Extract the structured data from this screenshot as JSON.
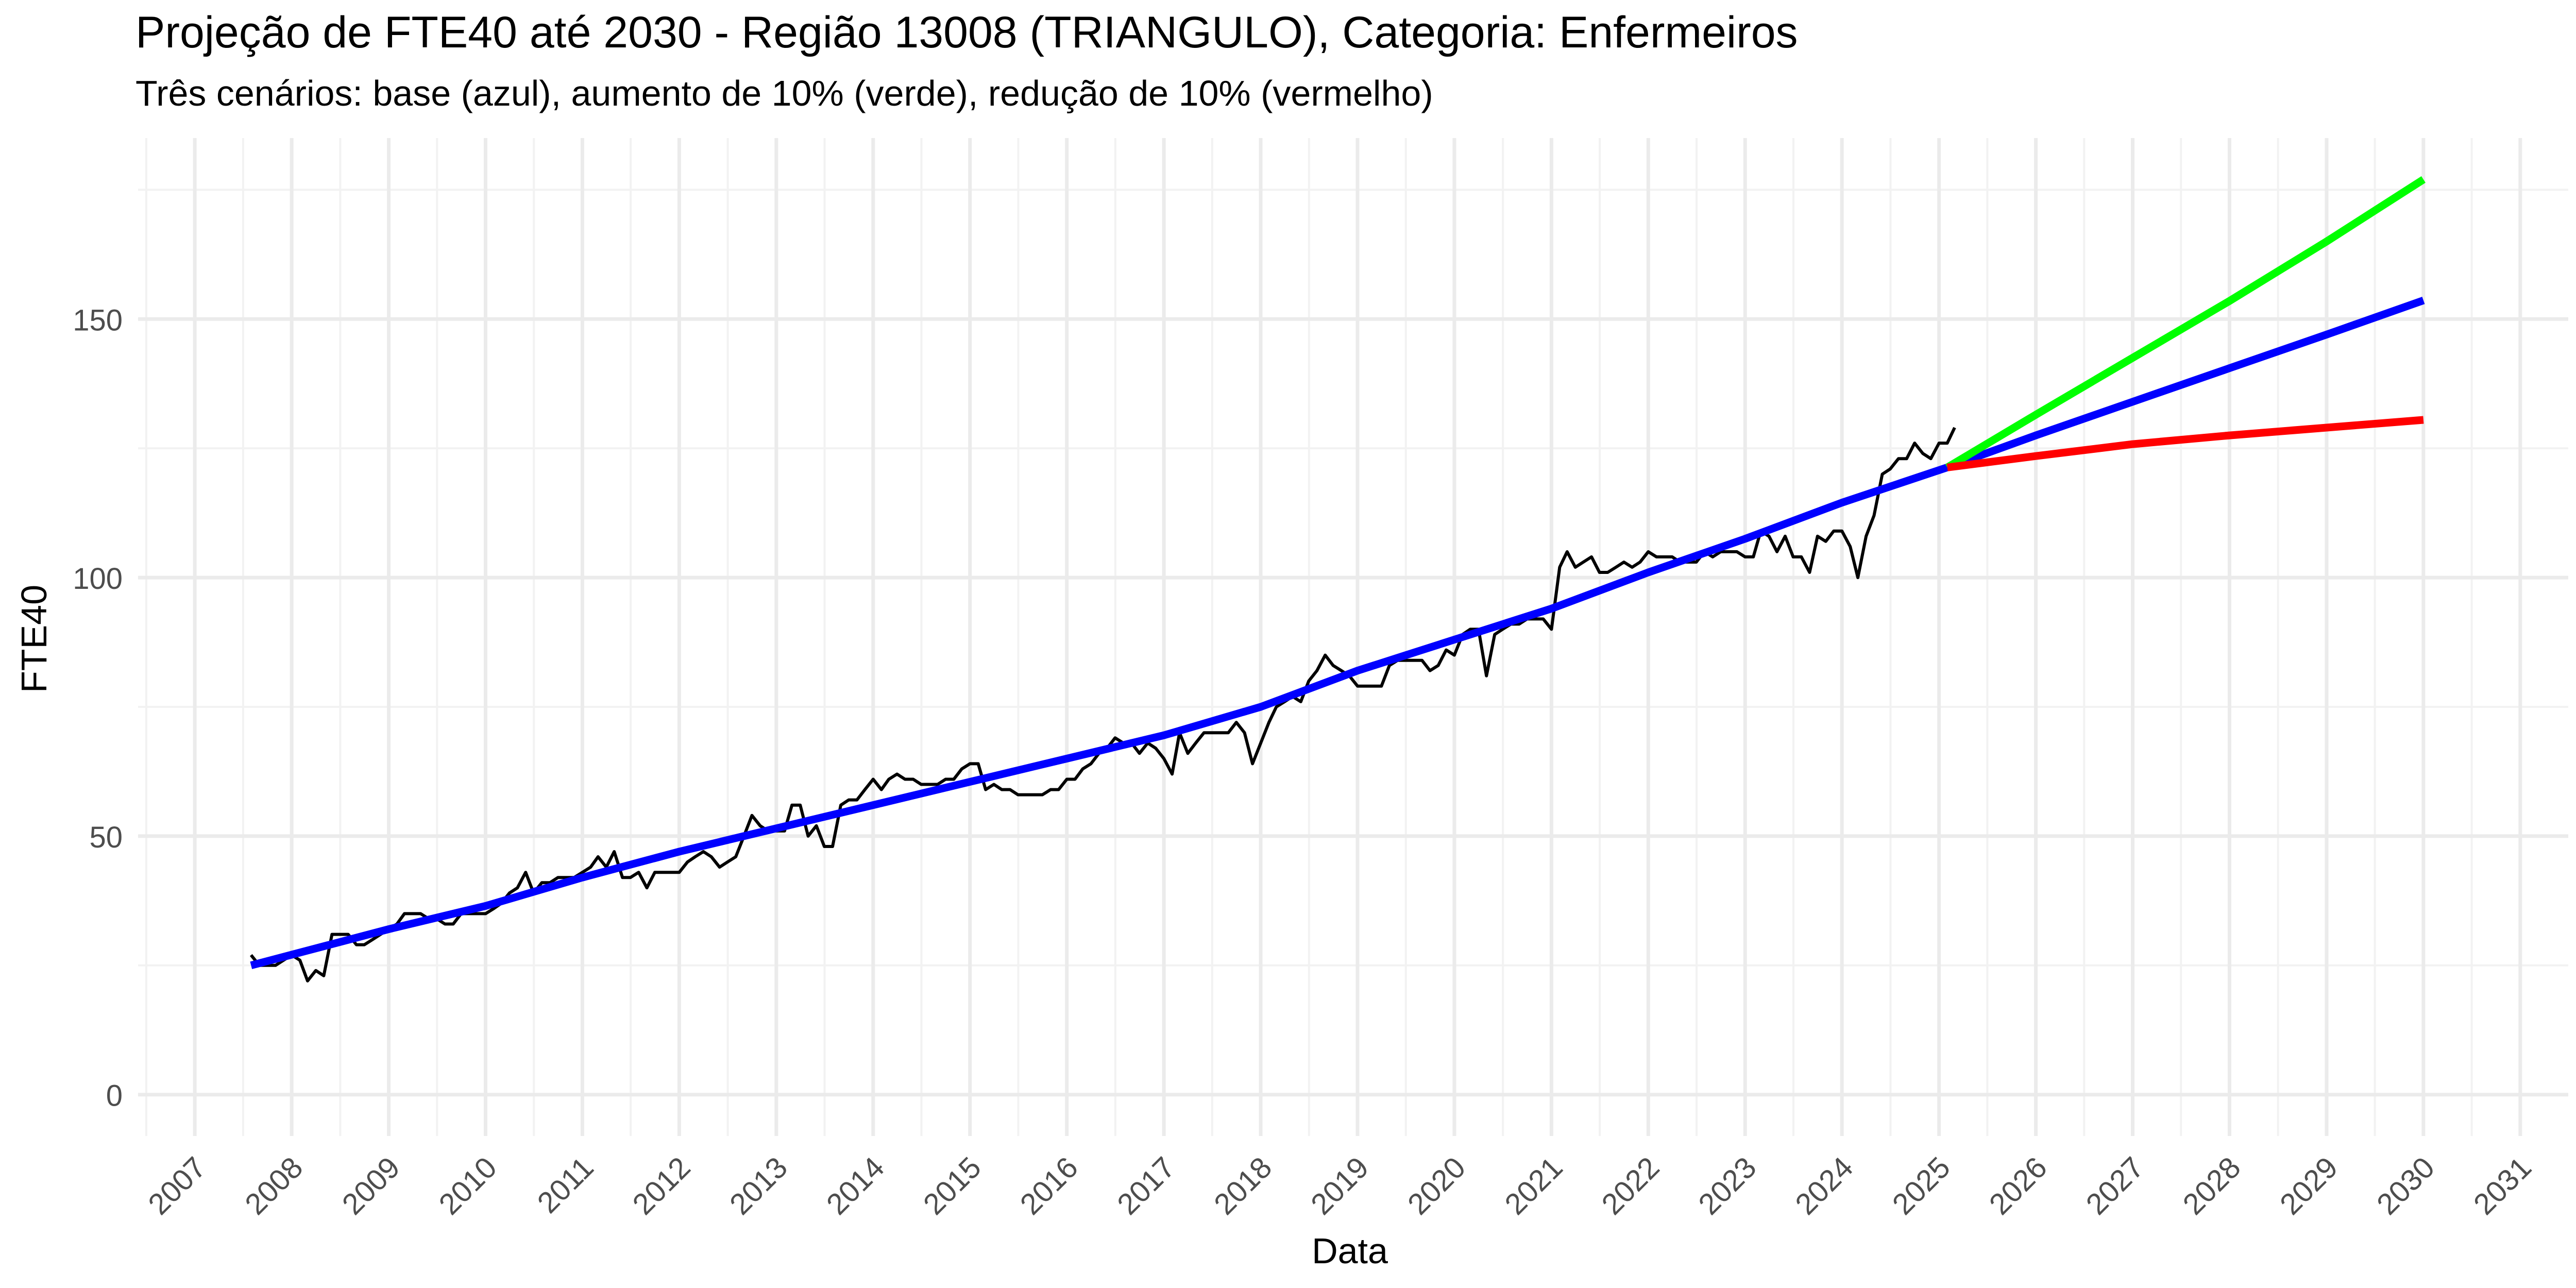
{
  "chart_data": {
    "type": "line",
    "title": "Projeção de FTE40 até 2030 - Região 13008 (TRIANGULO), Categoria: Enfermeiros",
    "subtitle": "Três cenários: base (azul), aumento de 10% (verde), redução de 10% (vermelho)",
    "xlabel": "Data",
    "ylabel": "FTE40",
    "x_axis_type": "date",
    "xlim": [
      "2006-06-01",
      "2031-07-01"
    ],
    "ylim": [
      -8,
      185
    ],
    "x_tick_labels": [
      "2007",
      "2008",
      "2009",
      "2010",
      "2011",
      "2012",
      "2013",
      "2014",
      "2015",
      "2016",
      "2017",
      "2018",
      "2019",
      "2020",
      "2021",
      "2022",
      "2023",
      "2024",
      "2025",
      "2026",
      "2027",
      "2028",
      "2029",
      "2030",
      "2031"
    ],
    "y_ticks": [
      0,
      50,
      100,
      150
    ],
    "y_tick_labels": [
      "0",
      "50",
      "100",
      "150"
    ],
    "grid": true,
    "legend": "none",
    "colors": {
      "observed": "#000000",
      "base": "#0000ff",
      "increase": "#00ff00",
      "decrease": "#ff0000",
      "grid_major": "#ebebeb",
      "grid_minor": "#f2f2f2",
      "background": "#ffffff"
    },
    "series": [
      {
        "key": "observed",
        "points": [
          [
            "2007-08-01",
            27
          ],
          [
            "2007-09-01",
            25
          ],
          [
            "2007-10-01",
            25
          ],
          [
            "2007-11-01",
            25
          ],
          [
            "2007-12-01",
            26
          ],
          [
            "2008-01-01",
            27
          ],
          [
            "2008-02-01",
            26
          ],
          [
            "2008-03-01",
            22
          ],
          [
            "2008-04-01",
            24
          ],
          [
            "2008-05-01",
            23
          ],
          [
            "2008-06-01",
            31
          ],
          [
            "2008-07-01",
            31
          ],
          [
            "2008-08-01",
            31
          ],
          [
            "2008-09-01",
            29
          ],
          [
            "2008-10-01",
            29
          ],
          [
            "2008-11-01",
            30
          ],
          [
            "2008-12-01",
            31
          ],
          [
            "2009-01-01",
            32
          ],
          [
            "2009-02-01",
            33
          ],
          [
            "2009-03-01",
            35
          ],
          [
            "2009-04-01",
            35
          ],
          [
            "2009-05-01",
            35
          ],
          [
            "2009-06-01",
            34
          ],
          [
            "2009-07-01",
            34
          ],
          [
            "2009-08-01",
            33
          ],
          [
            "2009-09-01",
            33
          ],
          [
            "2009-10-01",
            35
          ],
          [
            "2009-11-01",
            35
          ],
          [
            "2009-12-01",
            35
          ],
          [
            "2010-01-01",
            35
          ],
          [
            "2010-02-01",
            36
          ],
          [
            "2010-03-01",
            37
          ],
          [
            "2010-04-01",
            39
          ],
          [
            "2010-05-01",
            40
          ],
          [
            "2010-06-01",
            43
          ],
          [
            "2010-07-01",
            39
          ],
          [
            "2010-08-01",
            41
          ],
          [
            "2010-09-01",
            41
          ],
          [
            "2010-10-01",
            42
          ],
          [
            "2010-11-01",
            42
          ],
          [
            "2010-12-01",
            42
          ],
          [
            "2011-01-01",
            43
          ],
          [
            "2011-02-01",
            44
          ],
          [
            "2011-03-01",
            46
          ],
          [
            "2011-04-01",
            44
          ],
          [
            "2011-05-01",
            47
          ],
          [
            "2011-06-01",
            42
          ],
          [
            "2011-07-01",
            42
          ],
          [
            "2011-08-01",
            43
          ],
          [
            "2011-09-01",
            40
          ],
          [
            "2011-10-01",
            43
          ],
          [
            "2011-11-01",
            43
          ],
          [
            "2011-12-01",
            43
          ],
          [
            "2012-01-01",
            43
          ],
          [
            "2012-02-01",
            45
          ],
          [
            "2012-03-01",
            46
          ],
          [
            "2012-04-01",
            47
          ],
          [
            "2012-05-01",
            46
          ],
          [
            "2012-06-01",
            44
          ],
          [
            "2012-07-01",
            45
          ],
          [
            "2012-08-01",
            46
          ],
          [
            "2012-09-01",
            50
          ],
          [
            "2012-10-01",
            54
          ],
          [
            "2012-11-01",
            52
          ],
          [
            "2012-12-01",
            51
          ],
          [
            "2013-01-01",
            51
          ],
          [
            "2013-02-01",
            51
          ],
          [
            "2013-03-01",
            56
          ],
          [
            "2013-04-01",
            56
          ],
          [
            "2013-05-01",
            50
          ],
          [
            "2013-06-01",
            52
          ],
          [
            "2013-07-01",
            48
          ],
          [
            "2013-08-01",
            48
          ],
          [
            "2013-09-01",
            56
          ],
          [
            "2013-10-01",
            57
          ],
          [
            "2013-11-01",
            57
          ],
          [
            "2013-12-01",
            59
          ],
          [
            "2014-01-01",
            61
          ],
          [
            "2014-02-01",
            59
          ],
          [
            "2014-03-01",
            61
          ],
          [
            "2014-04-01",
            62
          ],
          [
            "2014-05-01",
            61
          ],
          [
            "2014-06-01",
            61
          ],
          [
            "2014-07-01",
            60
          ],
          [
            "2014-08-01",
            60
          ],
          [
            "2014-09-01",
            60
          ],
          [
            "2014-10-01",
            61
          ],
          [
            "2014-11-01",
            61
          ],
          [
            "2014-12-01",
            63
          ],
          [
            "2015-01-01",
            64
          ],
          [
            "2015-02-01",
            64
          ],
          [
            "2015-03-01",
            59
          ],
          [
            "2015-04-01",
            60
          ],
          [
            "2015-05-01",
            59
          ],
          [
            "2015-06-01",
            59
          ],
          [
            "2015-07-01",
            58
          ],
          [
            "2015-08-01",
            58
          ],
          [
            "2015-09-01",
            58
          ],
          [
            "2015-10-01",
            58
          ],
          [
            "2015-11-01",
            59
          ],
          [
            "2015-12-01",
            59
          ],
          [
            "2016-01-01",
            61
          ],
          [
            "2016-02-01",
            61
          ],
          [
            "2016-03-01",
            63
          ],
          [
            "2016-04-01",
            64
          ],
          [
            "2016-05-01",
            66
          ],
          [
            "2016-06-01",
            67
          ],
          [
            "2016-07-01",
            69
          ],
          [
            "2016-08-01",
            68
          ],
          [
            "2016-09-01",
            68
          ],
          [
            "2016-10-01",
            66
          ],
          [
            "2016-11-01",
            68
          ],
          [
            "2016-12-01",
            67
          ],
          [
            "2017-01-01",
            65
          ],
          [
            "2017-02-01",
            62
          ],
          [
            "2017-03-01",
            70
          ],
          [
            "2017-04-01",
            66
          ],
          [
            "2017-05-01",
            68
          ],
          [
            "2017-06-01",
            70
          ],
          [
            "2017-07-01",
            70
          ],
          [
            "2017-08-01",
            70
          ],
          [
            "2017-09-01",
            70
          ],
          [
            "2017-10-01",
            72
          ],
          [
            "2017-11-01",
            70
          ],
          [
            "2017-12-01",
            64
          ],
          [
            "2018-01-01",
            68
          ],
          [
            "2018-02-01",
            72
          ],
          [
            "2018-03-01",
            75
          ],
          [
            "2018-04-01",
            76
          ],
          [
            "2018-05-01",
            77
          ],
          [
            "2018-06-01",
            76
          ],
          [
            "2018-07-01",
            80
          ],
          [
            "2018-08-01",
            82
          ],
          [
            "2018-09-01",
            85
          ],
          [
            "2018-10-01",
            83
          ],
          [
            "2018-11-01",
            82
          ],
          [
            "2018-12-01",
            81
          ],
          [
            "2019-01-01",
            79
          ],
          [
            "2019-02-01",
            79
          ],
          [
            "2019-03-01",
            79
          ],
          [
            "2019-04-01",
            79
          ],
          [
            "2019-05-01",
            83
          ],
          [
            "2019-06-01",
            84
          ],
          [
            "2019-07-01",
            84
          ],
          [
            "2019-08-01",
            84
          ],
          [
            "2019-09-01",
            84
          ],
          [
            "2019-10-01",
            82
          ],
          [
            "2019-11-01",
            83
          ],
          [
            "2019-12-01",
            86
          ],
          [
            "2020-01-01",
            85
          ],
          [
            "2020-02-01",
            89
          ],
          [
            "2020-03-01",
            90
          ],
          [
            "2020-04-01",
            90
          ],
          [
            "2020-05-01",
            81
          ],
          [
            "2020-06-01",
            89
          ],
          [
            "2020-07-01",
            90
          ],
          [
            "2020-08-01",
            91
          ],
          [
            "2020-09-01",
            91
          ],
          [
            "2020-10-01",
            92
          ],
          [
            "2020-11-01",
            92
          ],
          [
            "2020-12-01",
            92
          ],
          [
            "2021-01-01",
            90
          ],
          [
            "2021-02-01",
            102
          ],
          [
            "2021-03-01",
            105
          ],
          [
            "2021-04-01",
            102
          ],
          [
            "2021-05-01",
            103
          ],
          [
            "2021-06-01",
            104
          ],
          [
            "2021-07-01",
            101
          ],
          [
            "2021-08-01",
            101
          ],
          [
            "2021-09-01",
            102
          ],
          [
            "2021-10-01",
            103
          ],
          [
            "2021-11-01",
            102
          ],
          [
            "2021-12-01",
            103
          ],
          [
            "2022-01-01",
            105
          ],
          [
            "2022-02-01",
            104
          ],
          [
            "2022-03-01",
            104
          ],
          [
            "2022-04-01",
            104
          ],
          [
            "2022-05-01",
            103
          ],
          [
            "2022-06-01",
            103
          ],
          [
            "2022-07-01",
            103
          ],
          [
            "2022-08-01",
            105
          ],
          [
            "2022-09-01",
            104
          ],
          [
            "2022-10-01",
            105
          ],
          [
            "2022-11-01",
            105
          ],
          [
            "2022-12-01",
            105
          ],
          [
            "2023-01-01",
            104
          ],
          [
            "2023-02-01",
            104
          ],
          [
            "2023-03-01",
            109
          ],
          [
            "2023-04-01",
            108
          ],
          [
            "2023-05-01",
            105
          ],
          [
            "2023-06-01",
            108
          ],
          [
            "2023-07-01",
            104
          ],
          [
            "2023-08-01",
            104
          ],
          [
            "2023-09-01",
            101
          ],
          [
            "2023-10-01",
            108
          ],
          [
            "2023-11-01",
            107
          ],
          [
            "2023-12-01",
            109
          ],
          [
            "2024-01-01",
            109
          ],
          [
            "2024-02-01",
            106
          ],
          [
            "2024-03-01",
            100
          ],
          [
            "2024-04-01",
            108
          ],
          [
            "2024-05-01",
            112
          ],
          [
            "2024-06-01",
            120
          ],
          [
            "2024-07-01",
            121
          ],
          [
            "2024-08-01",
            123
          ],
          [
            "2024-09-01",
            123
          ],
          [
            "2024-10-01",
            126
          ],
          [
            "2024-11-01",
            124
          ],
          [
            "2024-12-01",
            123
          ],
          [
            "2025-01-01",
            126
          ],
          [
            "2025-02-01",
            126
          ],
          [
            "2025-03-01",
            129
          ]
        ]
      },
      {
        "key": "base",
        "points": [
          [
            "2007-08-01",
            25
          ],
          [
            "2009-01-01",
            32
          ],
          [
            "2010-01-01",
            36.5
          ],
          [
            "2011-01-01",
            42
          ],
          [
            "2012-01-01",
            47
          ],
          [
            "2013-01-01",
            51.5
          ],
          [
            "2014-01-01",
            56
          ],
          [
            "2015-01-01",
            60.5
          ],
          [
            "2016-01-01",
            65
          ],
          [
            "2017-01-01",
            69.5
          ],
          [
            "2018-01-01",
            75
          ],
          [
            "2019-01-01",
            82
          ],
          [
            "2020-01-01",
            88
          ],
          [
            "2021-01-01",
            94
          ],
          [
            "2022-01-01",
            101
          ],
          [
            "2023-01-01",
            107.5
          ],
          [
            "2024-01-01",
            114.5
          ],
          [
            "2025-02-01",
            121.3
          ],
          [
            "2026-01-01",
            127.5
          ],
          [
            "2027-01-01",
            134
          ],
          [
            "2028-01-01",
            140.5
          ],
          [
            "2029-01-01",
            147
          ],
          [
            "2030-01-01",
            153.6
          ]
        ]
      },
      {
        "key": "increase",
        "points": [
          [
            "2025-02-01",
            121.3
          ],
          [
            "2026-01-01",
            131.5
          ],
          [
            "2027-01-01",
            142.5
          ],
          [
            "2028-01-01",
            153.5
          ],
          [
            "2029-01-01",
            165
          ],
          [
            "2030-01-01",
            177
          ]
        ]
      },
      {
        "key": "decrease",
        "points": [
          [
            "2025-02-01",
            121.3
          ],
          [
            "2026-01-01",
            123.5
          ],
          [
            "2027-01-01",
            125.8
          ],
          [
            "2028-01-01",
            127.5
          ],
          [
            "2029-01-01",
            129
          ],
          [
            "2030-01-01",
            130.5
          ]
        ]
      }
    ]
  }
}
